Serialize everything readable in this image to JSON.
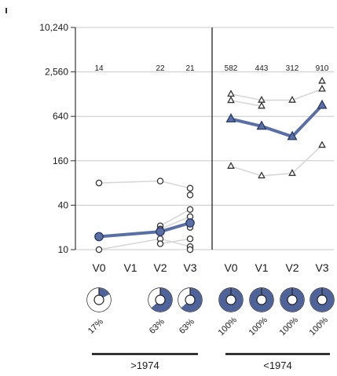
{
  "chart_data": {
    "type": "scatter",
    "y_scale": "log",
    "ylim": [
      10,
      10240
    ],
    "y_ticks": [
      "10",
      "40",
      "160",
      "640",
      "2,560",
      "10,240"
    ],
    "y_tick_values": [
      10,
      40,
      160,
      640,
      2560,
      10240
    ],
    "ylabel": "",
    "grid": "horizontal",
    "colors": {
      "mean": "#5a6fa6",
      "individual": "#d7d7d7",
      "grid": "#c8c8c8",
      "ring_dark": "#4e6399",
      "ring_light": "#ffffff"
    },
    "panels": [
      {
        "group_label": ">1974",
        "marker": "circle",
        "visits": [
          "V0",
          "V1",
          "V2",
          "V3"
        ],
        "n_labels": [
          {
            "visit": "V0",
            "text": "14"
          },
          {
            "visit": "V2",
            "text": "22"
          },
          {
            "visit": "V3",
            "text": "21"
          }
        ],
        "individuals": [
          {
            "visits": [
              "V0",
              "V2",
              "V3"
            ],
            "values": [
              80,
              85,
              68
            ]
          },
          {
            "visits": [
              "V0",
              "V2",
              "V3"
            ],
            "values": [
              10,
              14,
              11
            ]
          },
          {
            "visits": [
              "V2",
              "V3"
            ],
            "values": [
              21,
              35
            ]
          },
          {
            "visits": [
              "V2",
              "V3"
            ],
            "values": [
              19,
              28
            ]
          },
          {
            "visits": [
              "V2",
              "V3"
            ],
            "values": [
              12,
              14
            ]
          },
          {
            "visits": [
              "V3"
            ],
            "values": [
              55
            ]
          },
          {
            "visits": [
              "V3"
            ],
            "values": [
              20
            ]
          },
          {
            "visits": [
              "V3"
            ],
            "values": [
              10
            ]
          }
        ],
        "mean": {
          "visits": [
            "V0",
            "V2",
            "V3"
          ],
          "values": [
            15,
            17.5,
            23
          ]
        },
        "percent_labels": [
          {
            "visit": "V0",
            "text": "17%",
            "value": 17
          },
          {
            "visit": "V2",
            "text": "63%",
            "value": 63
          },
          {
            "visit": "V3",
            "text": "63%",
            "value": 63
          }
        ]
      },
      {
        "group_label": "<1974",
        "marker": "triangle",
        "visits": [
          "V0",
          "V1",
          "V2",
          "V3"
        ],
        "n_labels": [
          {
            "visit": "V0",
            "text": "582"
          },
          {
            "visit": "V1",
            "text": "443"
          },
          {
            "visit": "V2",
            "text": "312"
          },
          {
            "visit": "V3",
            "text": "910"
          }
        ],
        "individuals": [
          {
            "visits": [
              "V0",
              "V1",
              "V2",
              "V3"
            ],
            "values": [
              1280,
              1060,
              1060,
              1500
            ]
          },
          {
            "visits": [
              "V0",
              "V1"
            ],
            "values": [
              1050,
              880
            ]
          },
          {
            "visits": [
              "V3"
            ],
            "values": [
              1920
            ]
          },
          {
            "visits": [
              "V0",
              "V1",
              "V2",
              "V3"
            ],
            "values": [
              135,
              100,
              108,
              260
            ]
          }
        ],
        "mean": {
          "visits": [
            "V0",
            "V1",
            "V2",
            "V3"
          ],
          "values": [
            590,
            470,
            340,
            900
          ]
        },
        "percent_labels": [
          {
            "visit": "V0",
            "text": "100%",
            "value": 100
          },
          {
            "visit": "V1",
            "text": "100%",
            "value": 100
          },
          {
            "visit": "V2",
            "text": "100%",
            "value": 100
          },
          {
            "visit": "V3",
            "text": "100%",
            "value": 100
          }
        ]
      }
    ]
  }
}
